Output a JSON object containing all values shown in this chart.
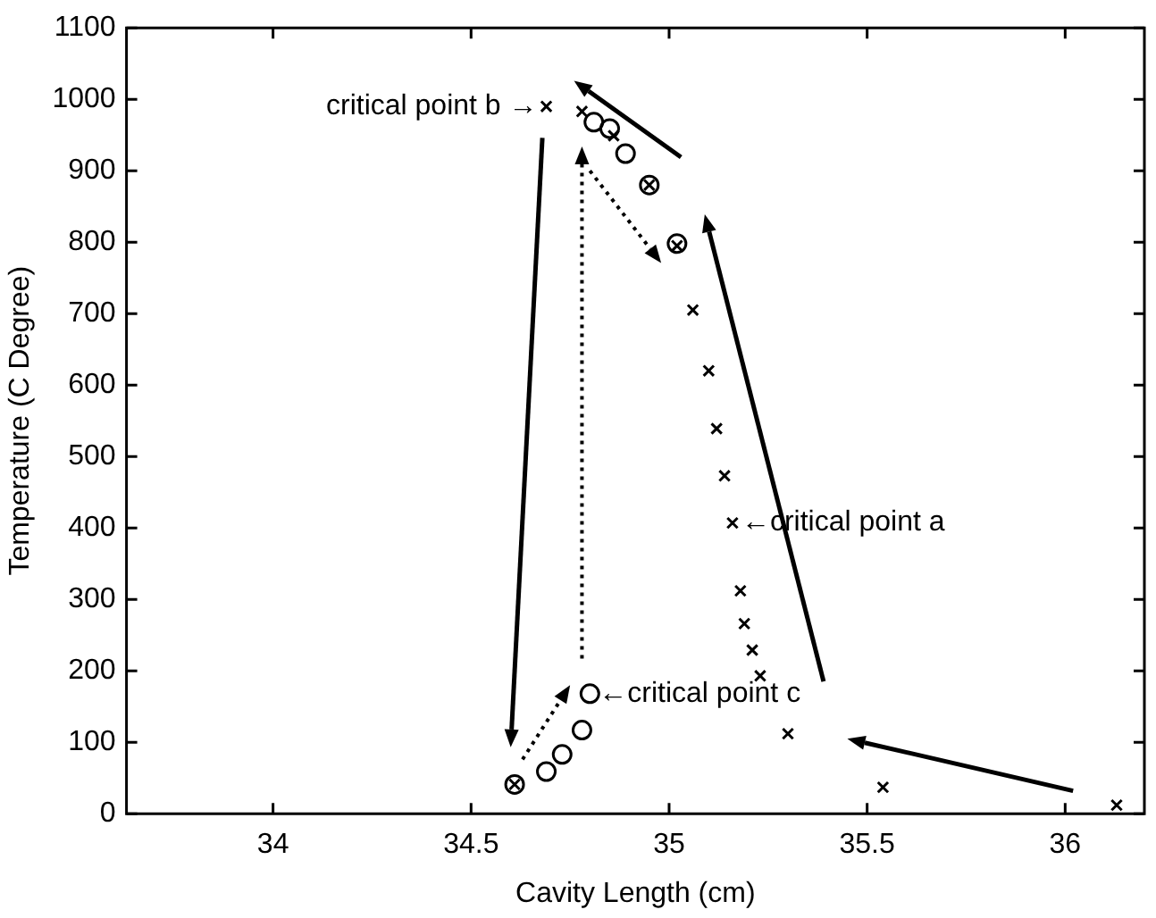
{
  "chart_data": {
    "type": "scatter",
    "xlabel": "Cavity Length (cm)",
    "ylabel": "Temperature (C Degree)",
    "xlim": [
      33.63,
      36.2
    ],
    "ylim": [
      0,
      1100
    ],
    "xticks": [
      34,
      34.5,
      35,
      35.5,
      36
    ],
    "yticks": [
      0,
      100,
      200,
      300,
      400,
      500,
      600,
      700,
      800,
      900,
      1000,
      1100
    ],
    "grid": false,
    "legend": false,
    "series": [
      {
        "color": "#000000",
        "marker": "circle",
        "x": [
          34.61,
          34.69,
          34.73,
          34.78,
          34.8,
          34.81,
          34.85,
          34.89,
          34.95,
          35.02
        ],
        "values": [
          41,
          59,
          83,
          117,
          168,
          968,
          959,
          924,
          880,
          798
        ]
      },
      {
        "color": "#000000",
        "marker": "cross",
        "x": [
          36.13,
          35.54,
          35.3,
          35.23,
          35.21,
          35.19,
          35.18,
          35.16,
          35.14,
          35.12,
          35.1,
          35.06,
          35.02,
          34.95,
          34.86,
          34.78,
          34.69,
          34.61
        ],
        "values": [
          12,
          37,
          112,
          193,
          229,
          266,
          312,
          407,
          473,
          539,
          620,
          705,
          795,
          880,
          949,
          983,
          990,
          41
        ]
      }
    ],
    "annotations": [
      {
        "text": "critical point b →",
        "x": 34.69,
        "y": 990
      },
      {
        "text": "←critical point a",
        "x": 35.16,
        "y": 407
      },
      {
        "text": "←critical point c",
        "x": 34.8,
        "y": 168
      }
    ]
  }
}
